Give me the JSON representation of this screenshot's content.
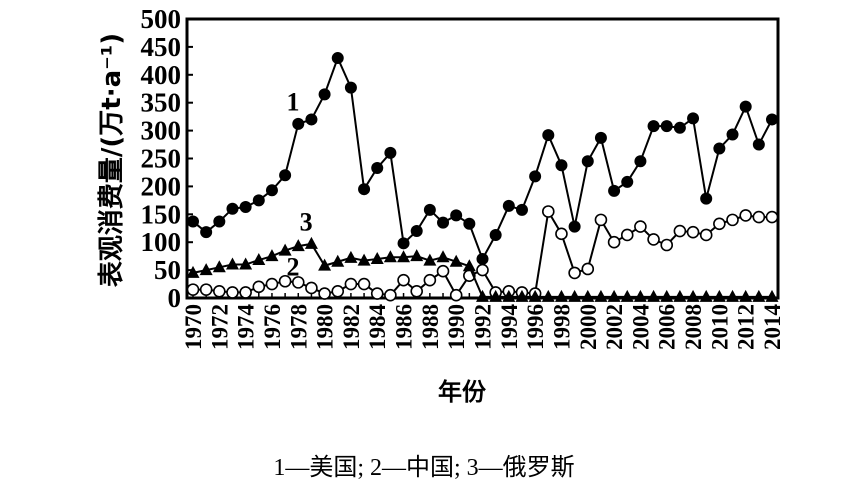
{
  "caption": "1—美国; 2—中国; 3—俄罗斯",
  "chart_data": {
    "type": "line",
    "title": "",
    "xlabel": "年份",
    "ylabel": "表观消费量/(万t·a⁻¹)",
    "ylim": [
      0,
      500
    ],
    "yticks": [
      0,
      50,
      100,
      150,
      200,
      250,
      300,
      350,
      400,
      450,
      500
    ],
    "xtick_labels": [
      "1970",
      "1972",
      "1974",
      "1976",
      "1978",
      "1980",
      "1982",
      "1984",
      "1986",
      "1988",
      "1990",
      "1992",
      "1994",
      "1996",
      "1998",
      "2000",
      "2002",
      "2004",
      "2006",
      "2008",
      "2010",
      "2012",
      "2014"
    ],
    "grid": false,
    "legend_position": "caption below chart; series numbers labeled inline",
    "x": [
      1970,
      1971,
      1972,
      1973,
      1974,
      1975,
      1976,
      1977,
      1978,
      1979,
      1980,
      1981,
      1982,
      1983,
      1984,
      1985,
      1986,
      1987,
      1988,
      1989,
      1990,
      1991,
      1992,
      1993,
      1994,
      1995,
      1996,
      1997,
      1998,
      1999,
      2000,
      2001,
      2002,
      2003,
      2004,
      2005,
      2006,
      2007,
      2008,
      2009,
      2010,
      2011,
      2012,
      2013,
      2014
    ],
    "series": [
      {
        "name": "1—美国",
        "label": "1",
        "marker": "filled-circle",
        "values": [
          137,
          118,
          137,
          160,
          163,
          175,
          193,
          220,
          312,
          320,
          365,
          430,
          377,
          195,
          233,
          260,
          98,
          120,
          158,
          135,
          148,
          133,
          70,
          113,
          165,
          158,
          218,
          292,
          238,
          128,
          245,
          287,
          192,
          208,
          245,
          308,
          308,
          305,
          322,
          178,
          268,
          293,
          343,
          275,
          320
        ]
      },
      {
        "name": "2—中国",
        "label": "2",
        "marker": "open-circle",
        "values": [
          15,
          15,
          12,
          10,
          10,
          20,
          25,
          30,
          28,
          18,
          8,
          12,
          25,
          25,
          8,
          5,
          32,
          12,
          32,
          48,
          5,
          40,
          50,
          10,
          12,
          10,
          8,
          155,
          115,
          45,
          52,
          140,
          100,
          113,
          128,
          105,
          95,
          120,
          118,
          113,
          133,
          140,
          148,
          145,
          145
        ]
      },
      {
        "name": "3—俄罗斯",
        "label": "3",
        "marker": "filled-triangle",
        "values": [
          45,
          50,
          55,
          60,
          60,
          68,
          75,
          85,
          93,
          97,
          58,
          65,
          72,
          67,
          70,
          73,
          73,
          75,
          67,
          73,
          65,
          57,
          2,
          2,
          2,
          2,
          2,
          2,
          2,
          2,
          2,
          2,
          2,
          2,
          2,
          2,
          2,
          2,
          2,
          2,
          2,
          2,
          2,
          2,
          2
        ]
      }
    ],
    "annotations": [
      {
        "text": "1",
        "x": 1977.6,
        "y": 350
      },
      {
        "text": "2",
        "x": 1977.6,
        "y": 55
      },
      {
        "text": "3",
        "x": 1978.6,
        "y": 135
      }
    ]
  }
}
